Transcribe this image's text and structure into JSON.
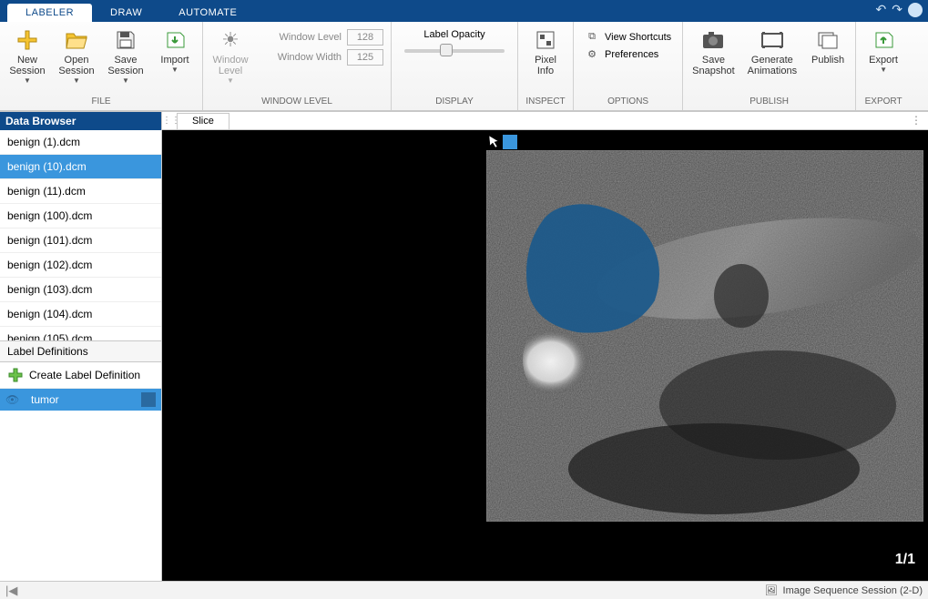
{
  "tabs": {
    "labeler": "LABELER",
    "draw": "DRAW",
    "automate": "AUTOMATE"
  },
  "ribbon": {
    "file": {
      "new": "New\nSession",
      "open": "Open\nSession",
      "save": "Save\nSession",
      "import": "Import",
      "label": "FILE"
    },
    "windowlevel": {
      "btn": "Window\nLevel",
      "level_label": "Window Level",
      "level_value": "128",
      "width_label": "Window Width",
      "width_value": "125",
      "label": "WINDOW LEVEL"
    },
    "display": {
      "opacity": "Label Opacity",
      "label": "DISPLAY"
    },
    "inspect": {
      "pixel": "Pixel\nInfo",
      "label": "INSPECT"
    },
    "options": {
      "shortcuts": "View Shortcuts",
      "prefs": "Preferences",
      "label": "OPTIONS"
    },
    "publish": {
      "snapshot": "Save\nSnapshot",
      "anim": "Generate\nAnimations",
      "publish": "Publish",
      "label": "PUBLISH"
    },
    "export": {
      "btn": "Export",
      "label": "EXPORT"
    }
  },
  "sidebar": {
    "title": "Data Browser",
    "files": [
      "benign (1).dcm",
      "benign (10).dcm",
      "benign (11).dcm",
      "benign (100).dcm",
      "benign (101).dcm",
      "benign (102).dcm",
      "benign (103).dcm",
      "benign (104).dcm",
      "benign (105).dcm"
    ],
    "selected_index": 1,
    "ld_header": "Label Definitions",
    "ld_create": "Create Label Definition",
    "label_name": "tumor",
    "label_color": "#2a6aa0"
  },
  "canvas": {
    "tab": "Slice",
    "counter": "1/1"
  },
  "status": {
    "session": "Image Sequence Session (2-D)"
  },
  "colors": {
    "ribbon_bg": "#0e4a8a",
    "accent": "#3a96dd",
    "tumor_overlay": "#1d5a8a"
  }
}
